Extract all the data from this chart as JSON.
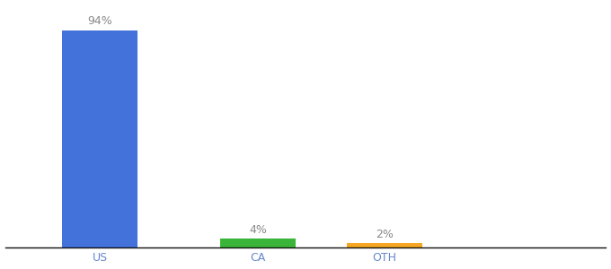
{
  "categories": [
    "US",
    "CA",
    "OTH"
  ],
  "values": [
    94,
    4,
    2
  ],
  "bar_colors": [
    "#4472db",
    "#3ab53a",
    "#f5a623"
  ],
  "label_texts": [
    "94%",
    "4%",
    "2%"
  ],
  "background_color": "#ffffff",
  "ylim": [
    0,
    105
  ],
  "bar_positions": [
    1.0,
    3.5,
    5.5
  ],
  "bar_width": 1.2,
  "xlim": [
    -0.5,
    9.0
  ],
  "label_fontsize": 9,
  "tick_fontsize": 9,
  "tick_color": "#6688cc",
  "label_color": "#888888"
}
